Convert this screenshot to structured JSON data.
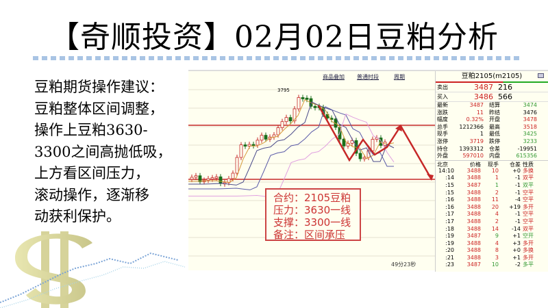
{
  "title": "【奇顺投资】02月02日豆粕分析",
  "advice": [
    "豆粕期货操作建议：",
    "豆粕整体区间调整，",
    "操作上豆粕3630-",
    "3300之间高抛低吸，",
    "上方看区间压力，",
    "滚动操作，逐渐移",
    "动获利保护。"
  ],
  "chart": {
    "links": [
      "商品叠加",
      "普通时段",
      "周期"
    ],
    "peak_label": "3795",
    "timer": "49分23秒",
    "note": [
      "合约：2105豆粕",
      "压力：3630一线",
      "支撑：3300一线",
      "备注：区间承压"
    ],
    "colors": {
      "line": "#c62828",
      "up": "#c62828",
      "down": "#1b6e1b"
    }
  },
  "panel": {
    "header": "豆粕2105(m2105)",
    "sell": {
      "label": "卖出",
      "price": "3487",
      "vol": "216"
    },
    "buy": {
      "label": "买入",
      "price": "3486",
      "vol": "566"
    },
    "stats": [
      {
        "l1": "最新",
        "v1": "3487",
        "c1": "red",
        "l2": "结算",
        "v2": "3474",
        "c2": "green"
      },
      {
        "l1": "涨跌",
        "v1": "11",
        "c1": "red",
        "l2": "昨结",
        "v2": "3476",
        "c2": "blk"
      },
      {
        "l1": "幅度",
        "v1": "0.32%",
        "c1": "red",
        "l2": "开盘",
        "v2": "3478",
        "c2": "red"
      },
      {
        "l1": "总手",
        "v1": "1212366",
        "c1": "blk",
        "l2": "最高",
        "v2": "3518",
        "c2": "red"
      },
      {
        "l1": "现手",
        "v1": "1",
        "c1": "blk",
        "l2": "最低",
        "v2": "3425",
        "c2": "green"
      },
      {
        "l1": "涨停",
        "v1": "3719",
        "c1": "red",
        "l2": "跌停",
        "v2": "3233",
        "c2": "green"
      },
      {
        "l1": "持仓",
        "v1": "1393312",
        "c1": "blk",
        "l2": "仓差",
        "v2": "-19951",
        "c2": "blk"
      },
      {
        "l1": "外盘",
        "v1": "597010",
        "c1": "red",
        "l2": "内盘",
        "v2": "615356",
        "c2": "green"
      }
    ],
    "ticks_header": [
      "北京",
      "价格",
      "现手",
      "仓差",
      "性质"
    ],
    "ticks": [
      [
        "14:10",
        "3488",
        "10",
        "+0",
        "多换",
        "red",
        "red"
      ],
      [
        ":14",
        "3488",
        "1",
        "-1",
        "双平",
        "red",
        "red"
      ],
      [
        ":15",
        "3487",
        "1",
        "-1",
        "双平",
        "green",
        "green"
      ],
      [
        ":15",
        "3488",
        "2",
        "-1",
        "空平",
        "red",
        "red"
      ],
      [
        ":16",
        "3488",
        "11",
        "-4",
        "空平",
        "red",
        "red"
      ],
      [
        ":16",
        "3488",
        "20",
        "+19",
        "多开",
        "red",
        "red"
      ],
      [
        ":17",
        "3488",
        "4",
        "-1",
        "空平",
        "red",
        "red"
      ],
      [
        ":17",
        "3488",
        "2",
        "-1",
        "空平",
        "red",
        "red"
      ],
      [
        ":18",
        "3488",
        "14",
        "-14",
        "双平",
        "red",
        "red"
      ],
      [
        ":19",
        "3487",
        "9",
        "+1",
        "空开",
        "green",
        "green"
      ],
      [
        ":19",
        "3488",
        "4",
        "+3",
        "多开",
        "red",
        "red"
      ],
      [
        ":20",
        "3488",
        "8",
        "+0",
        "多换",
        "red",
        "red"
      ],
      [
        ":21",
        "3488",
        "3",
        "+1",
        "多开",
        "red",
        "red"
      ],
      [
        ":23",
        "3487",
        "10",
        "-2",
        "多平",
        "green",
        "green"
      ]
    ]
  }
}
